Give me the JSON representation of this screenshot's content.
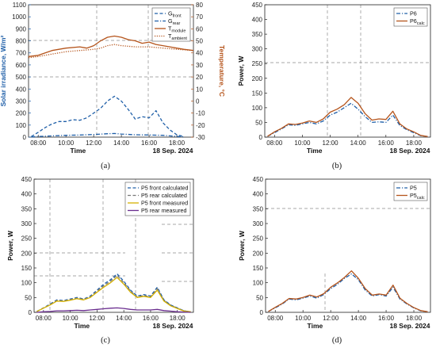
{
  "chart_data": [
    {
      "panel": "(a)",
      "type": "line",
      "xlabel": "Time",
      "date_label": "18 Sep. 2024",
      "xticks": [
        "08:00",
        "10:00",
        "12:00",
        "14:00",
        "16:00",
        "18:00"
      ],
      "xlim": [
        7.3,
        19.2
      ],
      "left_axis": {
        "label": "Solar irradiance, W/m²",
        "ylim": [
          0,
          1100
        ],
        "ticks": [
          0,
          100,
          200,
          300,
          400,
          500,
          600,
          700,
          800,
          900,
          1000,
          1100
        ],
        "color": "#1f5fa8"
      },
      "right_axis": {
        "label": "Temperature, °C",
        "ylim": [
          -30,
          80
        ],
        "ticks": [
          -30,
          -20,
          -10,
          0,
          10,
          20,
          30,
          40,
          50,
          60,
          70,
          80
        ],
        "color": "#b5541b"
      },
      "legend": {
        "position": "top-right",
        "entries": [
          {
            "base": "G",
            "sub": "front",
            "style": "dashed",
            "color": "#1f5fa8"
          },
          {
            "base": "G",
            "sub": "rear",
            "style": "dashdot",
            "color": "#1f5fa8"
          },
          {
            "base": "T",
            "sub": "module",
            "style": "solid",
            "color": "#b5541b"
          },
          {
            "base": "T",
            "sub": "ambient",
            "style": "dotted",
            "color": "#b5541b"
          }
        ]
      },
      "series": [
        {
          "name": "G_front",
          "axis": "left",
          "style": "dashed",
          "color": "#1f5fa8",
          "x": [
            7.5,
            8.0,
            8.5,
            9.0,
            9.5,
            10.0,
            10.5,
            11.0,
            11.5,
            12.0,
            12.5,
            13.0,
            13.5,
            14.0,
            14.5,
            15.0,
            15.5,
            16.0,
            16.5,
            17.0,
            17.5,
            18.0,
            18.5
          ],
          "y": [
            5,
            40,
            80,
            110,
            130,
            130,
            145,
            140,
            160,
            200,
            240,
            300,
            340,
            300,
            230,
            150,
            170,
            160,
            220,
            120,
            60,
            20,
            5
          ]
        },
        {
          "name": "G_rear",
          "axis": "left",
          "style": "dashdot",
          "color": "#1f5fa8",
          "x": [
            7.5,
            8.5,
            10.0,
            11.0,
            12.0,
            13.0,
            13.5,
            14.0,
            15.0,
            16.0,
            17.0,
            18.0,
            18.5
          ],
          "y": [
            2,
            8,
            15,
            18,
            22,
            28,
            30,
            26,
            20,
            18,
            15,
            6,
            2
          ]
        },
        {
          "name": "T_module",
          "axis": "right",
          "style": "solid",
          "color": "#b5541b",
          "x": [
            7.3,
            8.0,
            9.0,
            10.0,
            11.0,
            11.5,
            12.0,
            12.5,
            13.0,
            13.5,
            14.0,
            14.5,
            15.0,
            15.5,
            16.0,
            16.5,
            17.0,
            17.5,
            18.0,
            18.5,
            19.2
          ],
          "y": [
            37,
            38,
            42,
            44,
            45,
            44,
            46,
            50,
            53,
            54,
            53,
            51,
            50,
            48,
            49,
            47,
            46,
            45,
            44,
            43,
            42
          ]
        },
        {
          "name": "T_ambient",
          "axis": "right",
          "style": "dotted",
          "color": "#b5541b",
          "x": [
            7.3,
            8.0,
            9.0,
            10.0,
            11.0,
            12.0,
            12.5,
            13.0,
            13.5,
            14.0,
            15.0,
            16.0,
            17.0,
            18.0,
            19.2
          ],
          "y": [
            36,
            37,
            39,
            41,
            42,
            43,
            44,
            46,
            47,
            46,
            45,
            45,
            44,
            43,
            42
          ]
        }
      ]
    },
    {
      "panel": "(b)",
      "type": "line",
      "xlabel": "Time",
      "date_label": "18 Sep. 2024",
      "ylabel": "Power, W",
      "ylim": [
        0,
        450
      ],
      "yticks": [
        0,
        50,
        100,
        150,
        200,
        250,
        300,
        350,
        400,
        450
      ],
      "xticks": [
        "08:00",
        "10:00",
        "12:00",
        "14:00",
        "16:00",
        "18:00"
      ],
      "xlim": [
        7.3,
        19.2
      ],
      "legend": {
        "position": "top-right",
        "entries": [
          {
            "base": "P6",
            "sub": "",
            "style": "dashdot",
            "color": "#1f5fa8"
          },
          {
            "base": "P6",
            "sub": "calc",
            "style": "solid",
            "color": "#b5541b"
          }
        ]
      },
      "series": [
        {
          "name": "P6",
          "style": "dashdot",
          "color": "#1f5fa8",
          "x": [
            7.5,
            8.0,
            8.5,
            9.0,
            9.5,
            10.0,
            10.5,
            11.0,
            11.5,
            12.0,
            12.5,
            13.0,
            13.5,
            14.0,
            14.5,
            15.0,
            15.5,
            16.0,
            16.5,
            17.0,
            17.5,
            18.0,
            18.5,
            19.0
          ],
          "y": [
            3,
            15,
            28,
            42,
            40,
            45,
            50,
            45,
            55,
            75,
            85,
            100,
            115,
            95,
            70,
            50,
            52,
            50,
            75,
            40,
            25,
            15,
            5,
            2
          ]
        },
        {
          "name": "P6_calc",
          "style": "solid",
          "color": "#b5541b",
          "x": [
            7.5,
            8.0,
            8.5,
            9.0,
            9.5,
            10.0,
            10.5,
            11.0,
            11.5,
            12.0,
            12.5,
            13.0,
            13.5,
            14.0,
            14.5,
            15.0,
            15.5,
            16.0,
            16.5,
            17.0,
            17.5,
            18.0,
            18.5,
            19.0
          ],
          "y": [
            3,
            18,
            30,
            45,
            43,
            48,
            55,
            50,
            62,
            85,
            95,
            110,
            135,
            115,
            80,
            58,
            62,
            60,
            88,
            45,
            28,
            18,
            6,
            2
          ]
        }
      ]
    },
    {
      "panel": "(c)",
      "type": "line",
      "xlabel": "Time",
      "date_label": "18 Sep. 2024",
      "ylabel": "Power, W",
      "ylim": [
        0,
        450
      ],
      "yticks": [
        0,
        50,
        100,
        150,
        200,
        250,
        300,
        350,
        400,
        450
      ],
      "xticks": [
        "08:00",
        "10:00",
        "12:00",
        "14:00",
        "16:00",
        "18:00"
      ],
      "xlim": [
        7.3,
        19.2
      ],
      "legend": {
        "position": "top-right",
        "entries": [
          {
            "base": "P5 front calculated",
            "sub": "",
            "style": "dashed",
            "color": "#1f5fa8"
          },
          {
            "base": "P5 rear calculated",
            "sub": "",
            "style": "dashed",
            "color": "#777777"
          },
          {
            "base": "P5 front measured",
            "sub": "",
            "style": "solid",
            "color": "#d4b000"
          },
          {
            "base": "P5 rear measured",
            "sub": "",
            "style": "solid",
            "color": "#6a2d8f"
          }
        ]
      },
      "series": [
        {
          "name": "P5 front calculated",
          "style": "dashed",
          "color": "#1f5fa8",
          "x": [
            7.5,
            8.0,
            8.5,
            9.0,
            9.5,
            10.0,
            10.5,
            11.0,
            11.5,
            12.0,
            12.5,
            13.0,
            13.5,
            14.0,
            14.5,
            15.0,
            15.5,
            16.0,
            16.5,
            17.0,
            17.5,
            18.0,
            18.5,
            19.0
          ],
          "y": [
            3,
            15,
            28,
            42,
            40,
            45,
            50,
            45,
            55,
            75,
            95,
            110,
            130,
            105,
            75,
            55,
            60,
            55,
            85,
            42,
            25,
            15,
            5,
            2
          ]
        },
        {
          "name": "P5 rear calculated",
          "style": "dashed",
          "color": "#777777",
          "x": [
            7.5,
            8.0,
            8.5,
            9.0,
            9.5,
            10.0,
            10.5,
            11.0,
            11.5,
            12.0,
            12.5,
            13.0,
            13.5,
            14.0,
            14.5,
            15.0,
            15.5,
            16.0,
            16.5,
            17.0,
            17.5,
            18.0,
            18.5,
            19.0
          ],
          "y": [
            3,
            15,
            26,
            40,
            38,
            43,
            48,
            44,
            52,
            72,
            90,
            105,
            125,
            100,
            72,
            52,
            57,
            52,
            80,
            40,
            24,
            14,
            5,
            2
          ]
        },
        {
          "name": "P5 front measured",
          "style": "solid",
          "color": "#d4b000",
          "x": [
            7.5,
            8.0,
            8.5,
            9.0,
            9.5,
            10.0,
            10.5,
            11.0,
            11.5,
            12.0,
            12.5,
            13.0,
            13.5,
            14.0,
            14.5,
            15.0,
            15.5,
            16.0,
            16.5,
            17.0,
            17.5,
            18.0,
            18.5,
            19.0
          ],
          "y": [
            3,
            14,
            25,
            38,
            37,
            41,
            46,
            42,
            50,
            68,
            85,
            100,
            118,
            95,
            68,
            50,
            54,
            50,
            75,
            38,
            22,
            13,
            4,
            2
          ]
        },
        {
          "name": "P5 rear measured",
          "style": "solid",
          "color": "#6a2d8f",
          "x": [
            7.5,
            8.0,
            8.5,
            9.0,
            9.5,
            10.0,
            10.5,
            11.0,
            11.5,
            12.0,
            12.5,
            13.0,
            13.5,
            14.0,
            14.5,
            15.0,
            15.5,
            16.0,
            16.5,
            17.0,
            17.5,
            18.0,
            18.5,
            19.0
          ],
          "y": [
            0,
            2,
            3,
            5,
            5,
            6,
            7,
            6,
            8,
            10,
            12,
            14,
            15,
            13,
            10,
            8,
            8,
            8,
            10,
            6,
            4,
            2,
            1,
            0
          ]
        }
      ]
    },
    {
      "panel": "(d)",
      "type": "line",
      "xlabel": "Time",
      "date_label": "18 Sep. 2024",
      "ylabel": "Power, W",
      "ylim": [
        0,
        450
      ],
      "yticks": [
        0,
        50,
        100,
        150,
        200,
        250,
        300,
        350,
        400,
        450
      ],
      "xticks": [
        "08:00",
        "10:00",
        "12:00",
        "14:00",
        "16:00",
        "18:00"
      ],
      "xlim": [
        7.3,
        19.2
      ],
      "legend": {
        "position": "top-right",
        "entries": [
          {
            "base": "P5",
            "sub": "",
            "style": "dashdot",
            "color": "#1f5fa8"
          },
          {
            "base": "P5",
            "sub": "calc",
            "style": "solid",
            "color": "#b5541b"
          }
        ]
      },
      "series": [
        {
          "name": "P5",
          "style": "dashdot",
          "color": "#1f5fa8",
          "x": [
            7.5,
            8.0,
            8.5,
            9.0,
            9.5,
            10.0,
            10.5,
            11.0,
            11.5,
            12.0,
            12.5,
            13.0,
            13.5,
            14.0,
            14.5,
            15.0,
            15.5,
            16.0,
            16.5,
            17.0,
            17.5,
            18.0,
            18.5,
            19.0
          ],
          "y": [
            3,
            15,
            28,
            45,
            42,
            48,
            55,
            48,
            60,
            80,
            95,
            115,
            130,
            110,
            75,
            55,
            60,
            55,
            85,
            45,
            28,
            15,
            5,
            2
          ]
        },
        {
          "name": "P5_calc",
          "style": "solid",
          "color": "#b5541b",
          "x": [
            7.5,
            8.0,
            8.5,
            9.0,
            9.5,
            10.0,
            10.5,
            11.0,
            11.5,
            12.0,
            12.5,
            13.0,
            13.5,
            14.0,
            14.5,
            15.0,
            15.5,
            16.0,
            16.5,
            17.0,
            17.5,
            18.0,
            18.5,
            19.0
          ],
          "y": [
            3,
            17,
            30,
            47,
            45,
            50,
            58,
            52,
            63,
            85,
            100,
            118,
            140,
            115,
            80,
            58,
            62,
            58,
            92,
            48,
            30,
            16,
            6,
            2
          ]
        }
      ]
    }
  ]
}
